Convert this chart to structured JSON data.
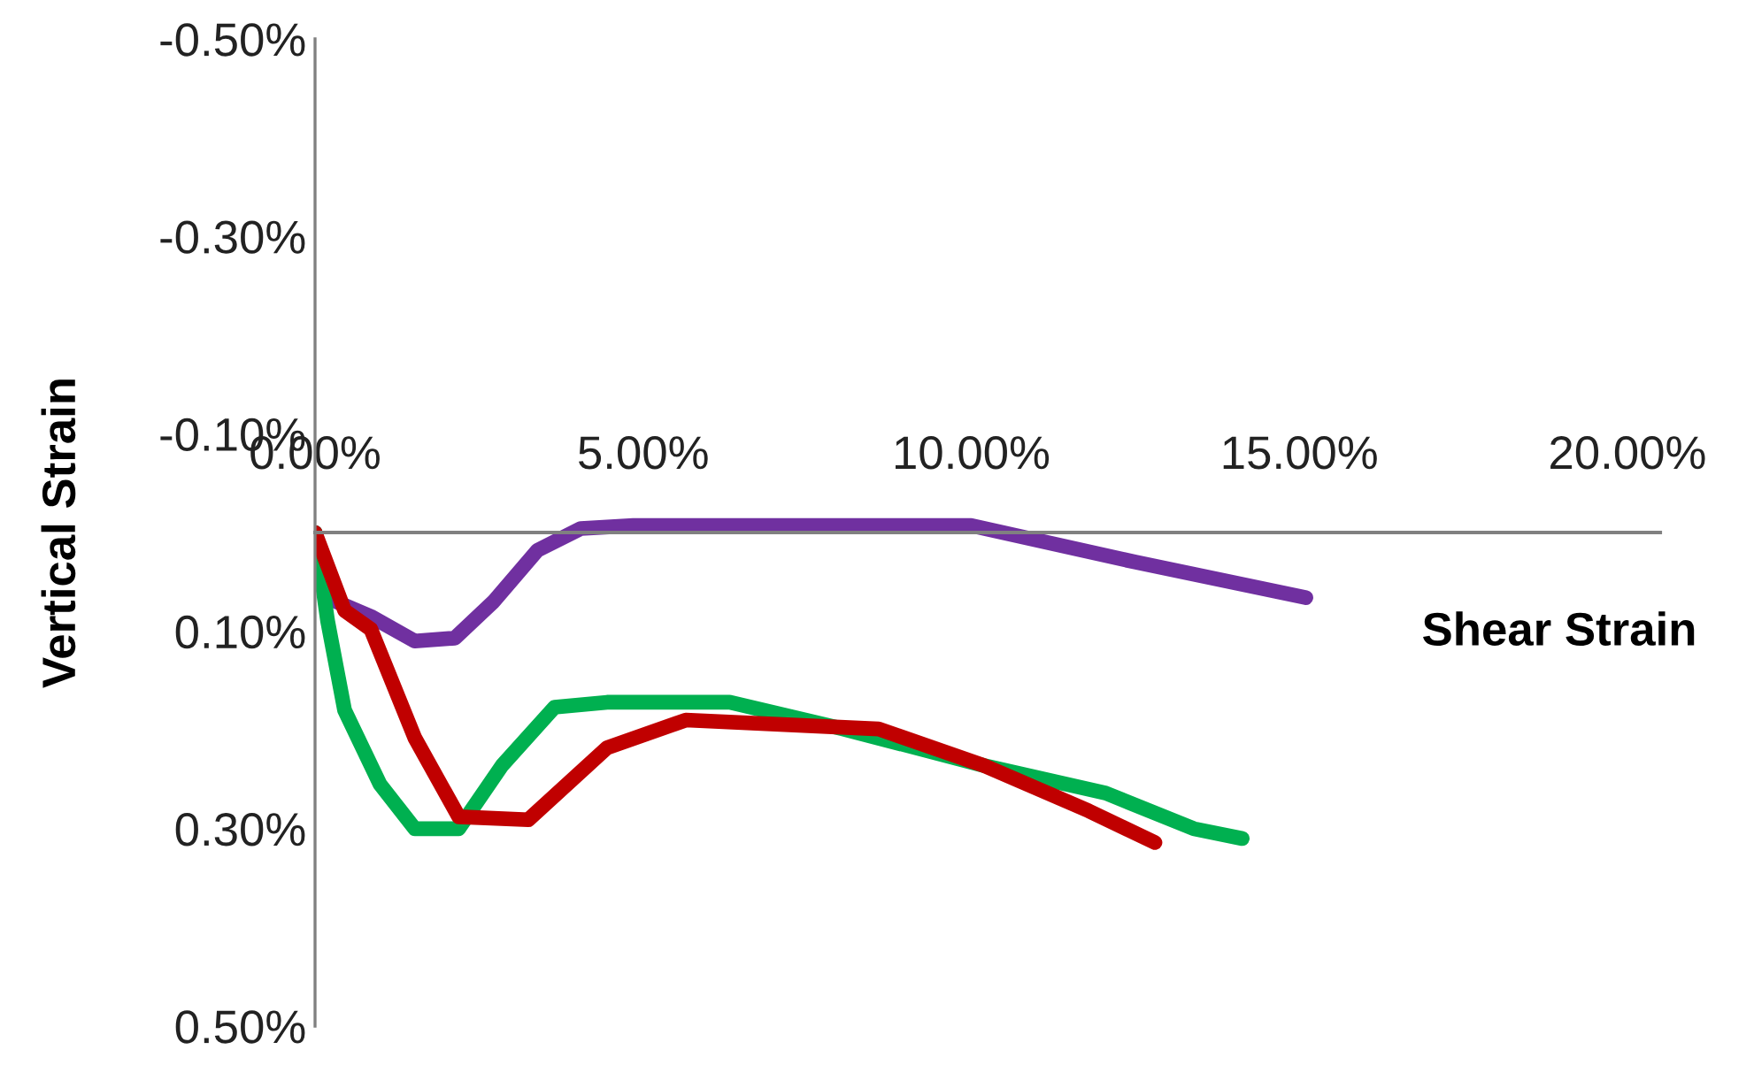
{
  "chart_data": {
    "type": "line",
    "xlabel": "Shear Strain",
    "ylabel": "Vertical Strain",
    "xlim": [
      0,
      20.5
    ],
    "ylim": [
      0.5,
      -0.5
    ],
    "xticks": [
      {
        "value": 0,
        "label": "0.00%"
      },
      {
        "value": 5,
        "label": "5.00%"
      },
      {
        "value": 10,
        "label": "10.00%"
      },
      {
        "value": 15,
        "label": "15.00%"
      },
      {
        "value": 20,
        "label": "20.00%"
      }
    ],
    "yticks": [
      {
        "value": -0.5,
        "label": "-0.50%"
      },
      {
        "value": -0.3,
        "label": "-0.30%"
      },
      {
        "value": -0.1,
        "label": "-0.10%"
      },
      {
        "value": 0.1,
        "label": "0.10%"
      },
      {
        "value": 0.3,
        "label": "0.30%"
      },
      {
        "value": 0.5,
        "label": "0.50%"
      }
    ],
    "grid": false,
    "legend": false,
    "line_style": "solid",
    "marker": "none",
    "series": [
      {
        "color": "#7030a0",
        "x": [
          0,
          0.32,
          0.85,
          1.52,
          2.13,
          2.72,
          3.39,
          4.05,
          4.85,
          7.0,
          10.0,
          12.5,
          15.1
        ],
        "values": [
          0,
          0.07,
          0.085,
          0.11,
          0.107,
          0.07,
          0.018,
          -0.004,
          -0.007,
          -0.007,
          -0.007,
          0.03,
          0.066
        ]
      },
      {
        "color": "#00b050",
        "x": [
          0,
          0.19,
          0.45,
          0.99,
          1.52,
          2.19,
          2.85,
          3.65,
          4.45,
          6.32,
          8.05,
          10.19,
          12.05,
          13.39,
          14.13
        ],
        "values": [
          0,
          0.089,
          0.18,
          0.255,
          0.3,
          0.3,
          0.236,
          0.177,
          0.172,
          0.172,
          0.199,
          0.236,
          0.264,
          0.3,
          0.31
        ]
      },
      {
        "color": "#c00000",
        "x": [
          0,
          0.45,
          0.85,
          1.52,
          2.19,
          3.25,
          4.45,
          5.65,
          8.59,
          10.19,
          11.79,
          12.8
        ],
        "values": [
          0,
          0.079,
          0.098,
          0.208,
          0.288,
          0.291,
          0.218,
          0.19,
          0.199,
          0.236,
          0.282,
          0.314
        ]
      }
    ]
  }
}
